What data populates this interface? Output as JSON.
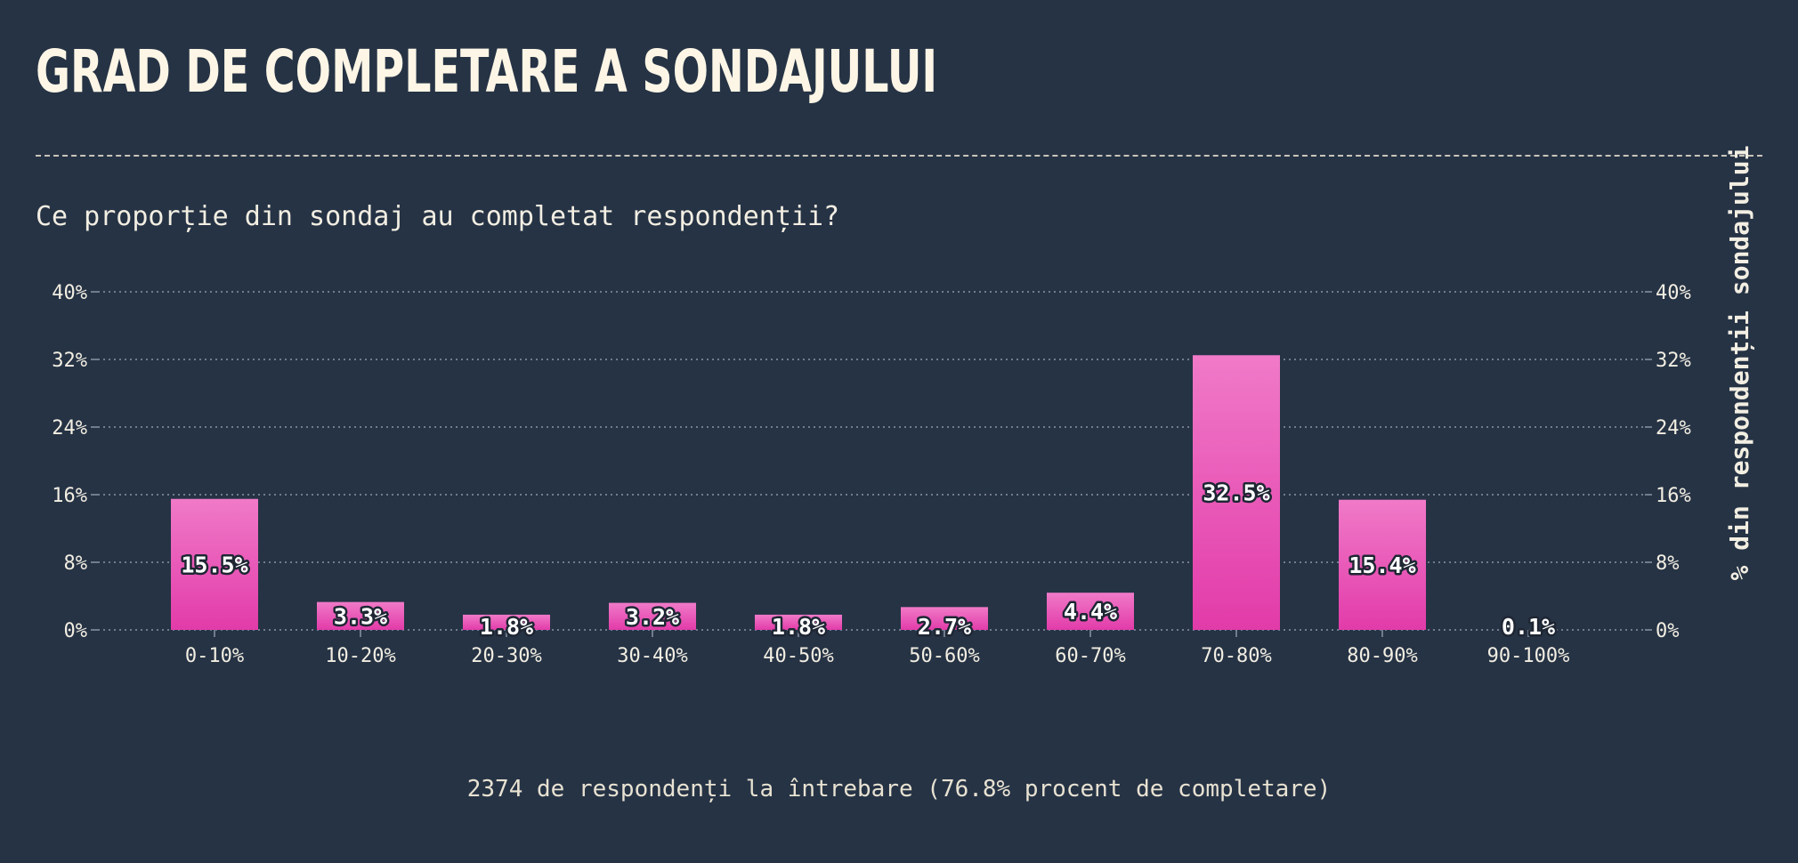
{
  "header": {
    "title": "GRAD DE COMPLETARE A SONDAJULUI",
    "subtitle": "Ce proporție din sondaj au completat respondenții?"
  },
  "footer": {
    "note": "2374 de respondenți la întrebare (76.8% procent de completare)"
  },
  "colors": {
    "background": "#263345",
    "bar_top": "#f07ac8",
    "bar_bottom": "#e23ba9",
    "text": "#f2eee2",
    "grid": "#8a94a3"
  },
  "chart_data": {
    "type": "bar",
    "categories": [
      "0-10%",
      "10-20%",
      "20-30%",
      "30-40%",
      "40-50%",
      "50-60%",
      "60-70%",
      "70-80%",
      "80-90%",
      "90-100%"
    ],
    "values": [
      15.5,
      3.3,
      1.8,
      3.2,
      1.8,
      2.7,
      4.4,
      32.5,
      15.4,
      0.1
    ],
    "data_labels": [
      "15.5%",
      "3.3%",
      "1.8%",
      "3.2%",
      "1.8%",
      "2.7%",
      "4.4%",
      "32.5%",
      "15.4%",
      "0.1%"
    ],
    "ylim": [
      0,
      40
    ],
    "yticks": [
      0,
      8,
      16,
      24,
      32,
      40
    ],
    "ytick_labels": [
      "0%",
      "8%",
      "16%",
      "24%",
      "32%",
      "40%"
    ],
    "ylabel": "% din respondenții sondajului",
    "xlabel": "",
    "grid": true,
    "secondary_y_axis": true
  }
}
